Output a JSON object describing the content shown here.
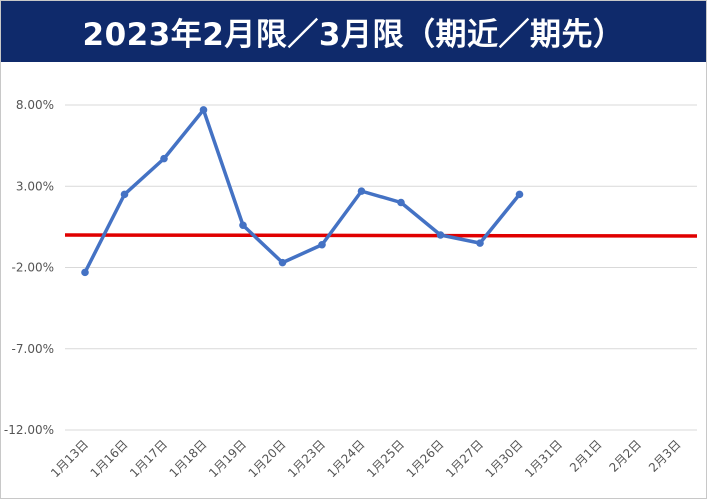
{
  "chart_data": {
    "type": "line",
    "title": "2023年2月限／3月限（期近／期先）",
    "xlabel": "",
    "ylabel": "",
    "categories": [
      "1月13日",
      "1月16日",
      "1月17日",
      "1月18日",
      "1月19日",
      "1月20日",
      "1月23日",
      "1月24日",
      "1月25日",
      "1月26日",
      "1月27日",
      "1月30日",
      "1月31日",
      "2月1日",
      "2月2日",
      "2月3日"
    ],
    "series": [
      {
        "color": "#4472c4",
        "values": [
          -2.3,
          2.5,
          4.7,
          7.7,
          0.6,
          -1.7,
          -0.6,
          2.7,
          2.0,
          0.0,
          -0.5,
          2.5,
          null,
          null,
          null,
          null
        ]
      }
    ],
    "reference_line": {
      "value": 0.0,
      "color": "#e00000"
    },
    "yticks": [
      "8.00%",
      "3.00%",
      "-2.00%",
      "-7.00%",
      "-12.00%"
    ],
    "ytick_values": [
      8,
      3,
      -2,
      -7,
      -12
    ],
    "ylim": [
      -12,
      8
    ],
    "grid": true,
    "legend": "none"
  }
}
